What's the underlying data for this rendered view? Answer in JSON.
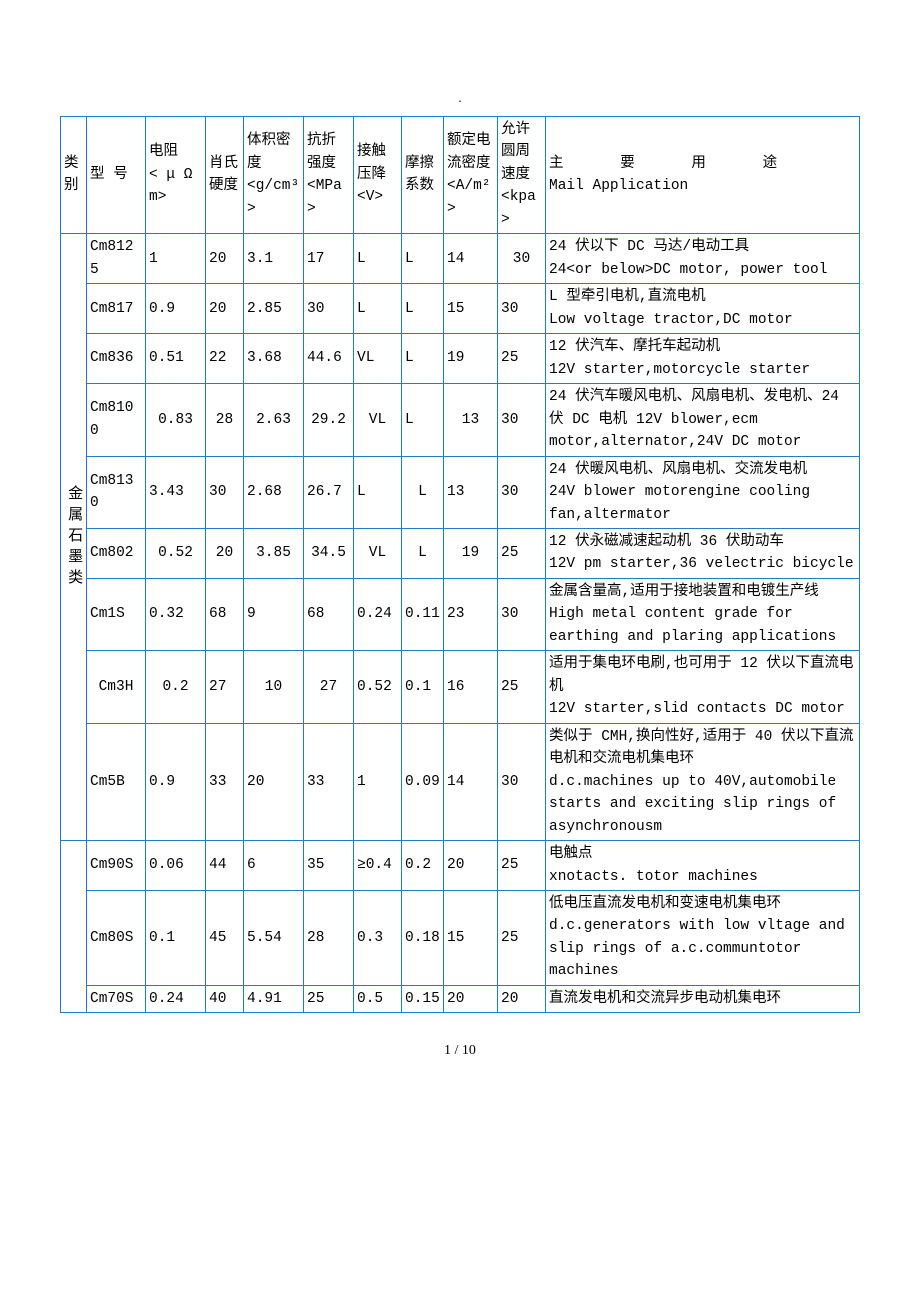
{
  "border_color": "#1e7fc3",
  "background_color": "#ffffff",
  "font_family": "SimSun",
  "font_size_pt": 11,
  "page_footer": "1 / 10",
  "columns": [
    {
      "key": "category",
      "label": "类别",
      "unit": ""
    },
    {
      "key": "model",
      "label": "型 号",
      "unit": ""
    },
    {
      "key": "resistivity",
      "label": "电阻",
      "unit": "< μ Ω m>"
    },
    {
      "key": "hardness",
      "label": "肖氏硬度",
      "unit": ""
    },
    {
      "key": "density",
      "label": "体积密度",
      "unit": "<g/cm³>"
    },
    {
      "key": "strength",
      "label": "抗折强度",
      "unit": "<MPa>"
    },
    {
      "key": "vdrop",
      "label": "接触压降",
      "unit": "<V>"
    },
    {
      "key": "friction",
      "label": "摩擦系数",
      "unit": ""
    },
    {
      "key": "current",
      "label": "额定电流密度",
      "unit": "<A/m²>"
    },
    {
      "key": "speed",
      "label": "允许圆周速度",
      "unit": "<kpa>"
    },
    {
      "key": "application",
      "label": "主 要 用 途",
      "unit": "Mail Application"
    }
  ],
  "groups": [
    {
      "category": "金属石墨类",
      "rowspan": 9,
      "rows": [
        {
          "idx": 0,
          "model": "Cm8125",
          "res": "1",
          "hard": "20",
          "dens": "3.1",
          "str": "17",
          "drop": "L",
          "fric": "L",
          "cur": "14",
          "spd": "30",
          "spd_align": "c",
          "app": "24 伏以下 DC 马达/电动工具\n24<or below>DC motor, power tool"
        },
        {
          "idx": 1,
          "model": "Cm817",
          "res": "0.9",
          "hard": "20",
          "dens": "2.85",
          "str": "30",
          "drop": "L",
          "fric": "L",
          "cur": "15",
          "spd": "30",
          "app": "L 型牵引电机,直流电机\nLow voltage tractor,DC motor"
        },
        {
          "idx": 2,
          "model": "Cm836",
          "res": "0.51",
          "hard": "22",
          "dens": "3.68",
          "str": "44.6",
          "drop": "VL",
          "fric": "L",
          "cur": "19",
          "spd": "25",
          "app": "12 伏汽车、摩托车起动机\n12V starter,motorcycle starter"
        },
        {
          "idx": 3,
          "model": "Cm8100",
          "res": "0.83",
          "res_align": "c",
          "hard": "28",
          "hard_align": "c",
          "dens": "2.63",
          "dens_align": "c",
          "str": "29.2",
          "str_align": "c",
          "drop": "VL",
          "drop_align": "c",
          "fric": "L",
          "cur": "13",
          "cur_align": "c",
          "spd": "30",
          "app": "24 伏汽车暖风电机、风扇电机、发电机、24 伏 DC 电机 12V blower,ecm motor,alternator,24V DC motor"
        },
        {
          "idx": 4,
          "model": "Cm8130",
          "res": "3.43",
          "hard": "30",
          "dens": "2.68",
          "str": "26.7",
          "drop": "L",
          "fric": "L",
          "fric_align": "c",
          "cur": "13",
          "spd": "30",
          "app": "24 伏暖风电机、风扇电机、交流发电机\n24V blower motorengine cooling fan,altermator"
        },
        {
          "idx": 5,
          "model": "Cm802",
          "res": "0.52",
          "res_align": "c",
          "hard": "20",
          "hard_align": "c",
          "dens": "3.85",
          "dens_align": "c",
          "str": "34.5",
          "str_align": "c",
          "drop": "VL",
          "drop_align": "c",
          "fric": "L",
          "fric_align": "c",
          "cur": "19",
          "cur_align": "c",
          "spd": "25",
          "app": "12 伏永磁减速起动机 36 伏助动车\n12V pm starter,36 velectric bicycle"
        },
        {
          "idx": 6,
          "model": "Cm1S",
          "res": "0.32",
          "hard": "68",
          "dens": "9",
          "str": "68",
          "drop": "0.24",
          "fric": "0.11",
          "cur": "23",
          "spd": "30",
          "app": "金属含量高,适用于接地装置和电镀生产线\nHigh metal content grade for earthing and plaring applications"
        },
        {
          "idx": 7,
          "model": "Cm3H",
          "model_align": "c",
          "res": "0.2",
          "res_align": "c",
          "hard": "27",
          "dens": "10",
          "dens_align": "c",
          "str": "27",
          "str_align": "c",
          "drop": "0.52",
          "fric": "0.1",
          "cur": "16",
          "spd": "25",
          "app": "适用于集电环电刷,也可用于 12 伏以下直流电机\n12V starter,slid contacts DC motor"
        },
        {
          "idx": 8,
          "model": "Cm5B",
          "res": "0.9",
          "hard": "33",
          "dens": "20",
          "str": "33",
          "drop": "1",
          "fric": "0.09",
          "cur": "14",
          "spd": "30",
          "app": "类似于 CMH,换向性好,适用于 40 伏以下直流电机和交流电机集电环\nd.c.machines up to 40V,automobile starts and exciting slip rings of asynchronousm"
        }
      ]
    },
    {
      "category": "",
      "rowspan": 3,
      "rows": [
        {
          "idx": 9,
          "model": "Cm90S",
          "res": "0.06",
          "hard": "44",
          "dens": "6",
          "str": "35",
          "drop": "≥0.4",
          "fric": "0.2",
          "cur": "20",
          "spd": "25",
          "app": "电触点\nxnotacts.   totor machines"
        },
        {
          "idx": 10,
          "model": "Cm80S",
          "res": "0.1",
          "hard": "45",
          "dens": "5.54",
          "str": "28",
          "drop": "0.3",
          "fric": "0.18",
          "cur": "15",
          "spd": "25",
          "app": "低电压直流发电机和变速电机集电环d.c.generators with low vltage and slip rings of a.c.communtotor machines"
        },
        {
          "idx": 11,
          "model": "Cm70S",
          "res": "0.24",
          "hard": "40",
          "dens": "4.91",
          "str": "25",
          "drop": "0.5",
          "fric": "0.15",
          "cur": "20",
          "spd": "20",
          "app": "直流发电机和交流异步电动机集电环"
        }
      ]
    }
  ]
}
